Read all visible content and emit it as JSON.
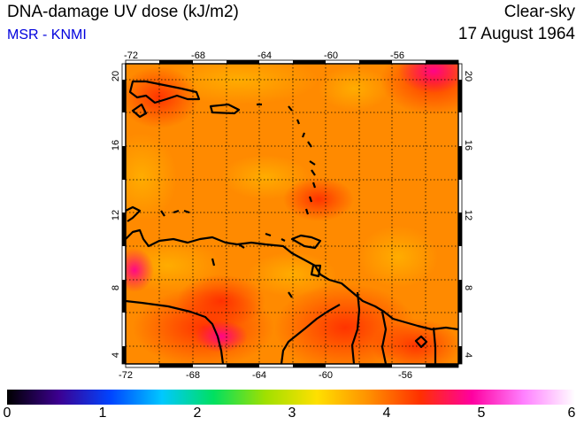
{
  "header": {
    "title": "DNA-damage UV dose (kJ/m2)",
    "source": "MSR - KNMI",
    "condition": "Clear-sky",
    "date": "17 August 1964"
  },
  "map": {
    "lon_ticks": [
      "-72",
      "-68",
      "-64",
      "-60",
      "-56"
    ],
    "lat_ticks": [
      "4",
      "8",
      "12",
      "16",
      "20"
    ],
    "colors": {
      "field_base": "#ff8800",
      "land_outline": "#000000",
      "grid": "#000000"
    }
  },
  "colorbar": {
    "labels": [
      "0",
      "1",
      "2",
      "3",
      "4",
      "5",
      "6"
    ],
    "stops": [
      "#000000",
      "#3c0090",
      "#0044ff",
      "#00c8ff",
      "#00e060",
      "#a0e000",
      "#ffe000",
      "#ff9000",
      "#ff3000",
      "#ff00a0",
      "#ff80ff",
      "#ffffff"
    ]
  }
}
